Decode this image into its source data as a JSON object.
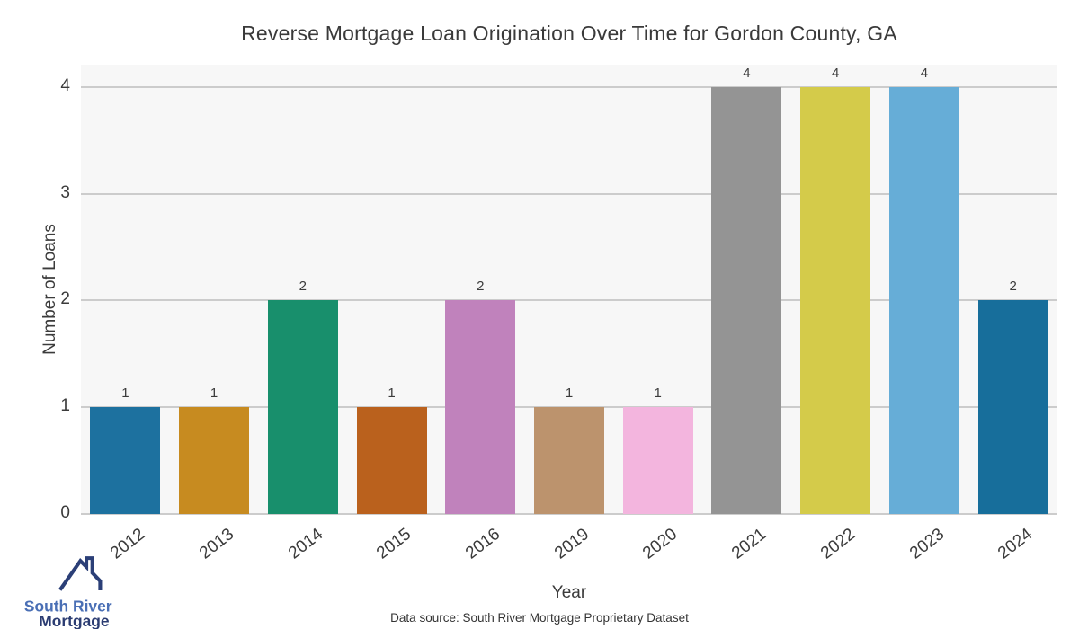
{
  "title": "Reverse Mortgage Loan Origination Over Time for Gordon County, GA",
  "chart_data": {
    "type": "bar",
    "categories": [
      "2012",
      "2013",
      "2014",
      "2015",
      "2016",
      "2019",
      "2020",
      "2021",
      "2022",
      "2023",
      "2024"
    ],
    "values": [
      1,
      1,
      2,
      1,
      2,
      1,
      1,
      4,
      4,
      4,
      2
    ],
    "bar_colors": [
      "#1d719f",
      "#c78b20",
      "#188f6c",
      "#ba611d",
      "#c082bc",
      "#bc936d",
      "#f3b5de",
      "#949494",
      "#d4cb4a",
      "#66add7",
      "#176e9b"
    ],
    "title": "Reverse Mortgage Loan Origination Over Time for Gordon County, GA",
    "xlabel": "Year",
    "ylabel": "Number of Loans",
    "yticks": [
      0,
      1,
      2,
      3,
      4
    ],
    "ylim": [
      0,
      4.21
    ],
    "grid": true,
    "legend": "none",
    "plot_background": "#f7f7f7",
    "grid_color": "#cccccc",
    "label_color": "#3b3b3b"
  },
  "caption": "Data source: South River Mortgage Proprietary Dataset",
  "logo": {
    "line1": "South River",
    "line2": "Mortgage",
    "color_line1": "#4a6fb5",
    "color_line2": "#2b3c72"
  }
}
